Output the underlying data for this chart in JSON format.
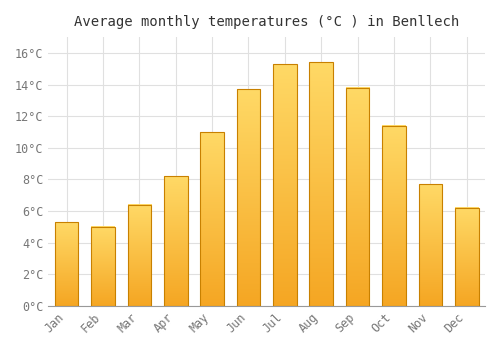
{
  "title": "Average monthly temperatures (°C ) in Benllech",
  "months": [
    "Jan",
    "Feb",
    "Mar",
    "Apr",
    "May",
    "Jun",
    "Jul",
    "Aug",
    "Sep",
    "Oct",
    "Nov",
    "Dec"
  ],
  "values": [
    5.3,
    5.0,
    6.4,
    8.2,
    11.0,
    13.7,
    15.3,
    15.4,
    13.8,
    11.4,
    7.7,
    6.2
  ],
  "bar_color_bottom": "#F5A623",
  "bar_color_top": "#FFD966",
  "bar_edge_color": "#C88000",
  "ylim": [
    0,
    17
  ],
  "yticks": [
    0,
    2,
    4,
    6,
    8,
    10,
    12,
    14,
    16
  ],
  "ytick_labels": [
    "0°C",
    "2°C",
    "4°C",
    "6°C",
    "8°C",
    "10°C",
    "12°C",
    "14°C",
    "16°C"
  ],
  "background_color": "#ffffff",
  "grid_color": "#e0e0e0",
  "title_fontsize": 10,
  "tick_fontsize": 8.5,
  "bar_width": 0.65
}
